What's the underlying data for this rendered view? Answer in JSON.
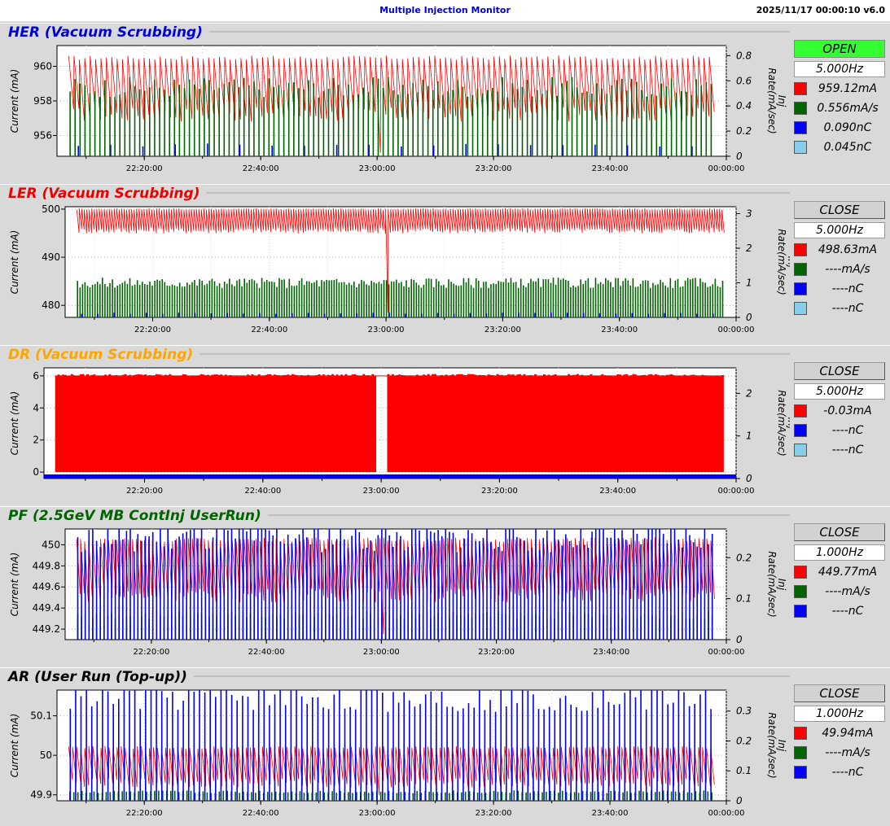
{
  "app": {
    "title": "Multiple Injection Monitor",
    "timestamp": "2025/11/17 00:00:10   v6.0"
  },
  "colors": {
    "her_title": "#0000dd",
    "ler_title": "#ee0000",
    "dr_title": "#ffa500",
    "pf_title": "#006400",
    "ar_title": "#000000",
    "current": "#ff0000",
    "inj_rate": "#006400",
    "charge": "#0000ff",
    "charge2": "#87ceeb",
    "open": "#33ff33"
  },
  "panels": [
    {
      "name": "HER",
      "title": "HER  (Vacuum Scrubbing)",
      "status": "OPEN",
      "frequency": "5.000Hz",
      "legend": [
        {
          "value": "959.12mA",
          "color": "#ff0000"
        },
        {
          "value": "0.556mA/s",
          "color": "#006400"
        },
        {
          "value": "0.090nC",
          "color": "#0000ff"
        },
        {
          "value": "0.045nC",
          "color": "#87ceeb"
        }
      ]
    },
    {
      "name": "LER",
      "title": "LER  (Vacuum Scrubbing)",
      "status": "CLOSE",
      "frequency": "5.000Hz",
      "legend": [
        {
          "value": "498.63mA",
          "color": "#ff0000"
        },
        {
          "value": "----mA/s",
          "color": "#006400"
        },
        {
          "value": "----nC",
          "color": "#0000ff"
        },
        {
          "value": "----nC",
          "color": "#87ceeb"
        }
      ]
    },
    {
      "name": "DR",
      "title": "DR  (Vacuum Scrubbing)",
      "status": "CLOSE",
      "frequency": "5.000Hz",
      "legend": [
        {
          "value": "-0.03mA",
          "color": "#ff0000"
        },
        {
          "value": "----nC",
          "color": "#0000ff"
        },
        {
          "value": "----nC",
          "color": "#87ceeb"
        }
      ]
    },
    {
      "name": "PF",
      "title": "PF  (2.5GeV MB ContInj UserRun)",
      "status": "CLOSE",
      "frequency": "1.000Hz",
      "legend": [
        {
          "value": "449.77mA",
          "color": "#ff0000"
        },
        {
          "value": "----mA/s",
          "color": "#006400"
        },
        {
          "value": "----nC",
          "color": "#0000ff"
        }
      ]
    },
    {
      "name": "AR",
      "title": "AR  (User Run (Top-up))",
      "status": "CLOSE",
      "frequency": "1.000Hz",
      "legend": [
        {
          "value": "49.94mA",
          "color": "#ff0000"
        },
        {
          "value": "----mA/s",
          "color": "#006400"
        },
        {
          "value": "----nC",
          "color": "#0000ff"
        }
      ]
    }
  ],
  "chart_data": [
    {
      "type": "line",
      "panel": "HER",
      "x_ticks": [
        "22:20:00",
        "22:40:00",
        "23:00:00",
        "23:20:00",
        "23:40:00",
        "00:00:00"
      ],
      "xlim": [
        "22:05:00",
        "00:00:00"
      ],
      "ylabel": "Current (mA)",
      "ylabel2": "Inj Rate(mA/sec) Charge(nC)",
      "ylim": [
        954.8,
        961.2
      ],
      "y_ticks": [
        956,
        958,
        960
      ],
      "y2lim": [
        0,
        0.88
      ],
      "y2_ticks": [
        0,
        0.2,
        0.4,
        0.6,
        0.8
      ],
      "series": [
        {
          "name": "959.12mA",
          "color": "#ff0000",
          "values": {
            "sawtooth_low": 957.2,
            "sawtooth_high": 960.5,
            "cycles": 120,
            "dip_at": "23:00:00",
            "dip_to": 955.0
          }
        },
        {
          "name": "0.556mA/s",
          "color": "#006400",
          "values": {
            "spike_height": 0.55,
            "spikes": 130
          }
        },
        {
          "name": "0.090nC",
          "color": "#0000ff",
          "values": {
            "spike_height": 0.09,
            "spikes": 20
          }
        }
      ]
    },
    {
      "type": "line",
      "panel": "LER",
      "x_ticks": [
        "22:20:00",
        "22:40:00",
        "23:00:00",
        "23:20:00",
        "23:40:00",
        "00:00:00"
      ],
      "xlim": [
        "22:05:00",
        "00:00:00"
      ],
      "ylabel": "Current (mA)",
      "ylabel2": "Inj Rate(mA/sec) Charge(nC)",
      "ylim": [
        477.5,
        500.5
      ],
      "y_ticks": [
        480,
        490,
        500
      ],
      "y2lim": [
        0,
        3.2
      ],
      "y2_ticks": [
        0,
        1,
        2,
        3
      ],
      "series": [
        {
          "name": "498.63mA",
          "color": "#ff0000",
          "values": {
            "sawtooth_low": 495.5,
            "sawtooth_high": 500.0,
            "cycles": 260,
            "dip_at": "23:00:00",
            "dip_to": 478.5
          }
        },
        {
          "name": "----mA/s",
          "color": "#006400",
          "values": {
            "spike_height": 1.0,
            "spikes": 260
          }
        },
        {
          "name": "----nC",
          "color": "#0000ff",
          "values": {
            "spike_height": 0.12,
            "spikes": 40
          }
        }
      ]
    },
    {
      "type": "line",
      "panel": "DR",
      "x_ticks": [
        "22:20:00",
        "22:40:00",
        "23:00:00",
        "23:20:00",
        "23:40:00",
        "00:00:00"
      ],
      "xlim": [
        "22:03:00",
        "00:00:00"
      ],
      "ylabel": "Current (mA)",
      "ylabel2": "Inj Rate(mA/sec) Charge(nC)",
      "ylim": [
        -0.4,
        6.5
      ],
      "y_ticks": [
        0,
        2,
        4,
        6
      ],
      "y2lim": [
        0,
        2.6
      ],
      "y2_ticks": [
        0,
        1,
        2
      ],
      "series": [
        {
          "name": "-0.03mA",
          "color": "#ff0000",
          "values": {
            "pulse_high": 6.0,
            "pulse_low": 0,
            "pulses": 300,
            "gap_at": "23:00:00"
          }
        },
        {
          "name": "----nC",
          "color": "#0000ff",
          "values": {
            "baseline": 0.0
          }
        }
      ]
    },
    {
      "type": "line",
      "panel": "PF",
      "x_ticks": [
        "22:20:00",
        "22:40:00",
        "23:00:00",
        "23:20:00",
        "23:40:00",
        "00:00:00"
      ],
      "xlim": [
        "22:05:00",
        "00:00:00"
      ],
      "ylabel": "Current (mA)",
      "ylabel2": "Inj Rate(mA/sec) Charge(nC)",
      "ylim": [
        449.1,
        450.15
      ],
      "y_ticks": [
        449.2,
        449.4,
        449.6,
        449.8,
        450
      ],
      "y2lim": [
        0,
        0.27
      ],
      "y2_ticks": [
        0,
        0.1,
        0.2
      ],
      "series": [
        {
          "name": "449.77mA",
          "color": "#ff0000",
          "values": {
            "sawtooth_low": 449.52,
            "sawtooth_high": 450.05,
            "cycles": 160,
            "dip_at": "23:00:00",
            "dip_to": 449.15
          }
        },
        {
          "name": "----mA/s",
          "color": "#006400",
          "values": {
            "spike_height": 0.06,
            "spikes": 170
          }
        },
        {
          "name": "----nC",
          "color": "#0000ff",
          "values": {
            "spike_height": 0.25,
            "spikes": 170
          }
        }
      ]
    },
    {
      "type": "line",
      "panel": "AR",
      "x_ticks": [
        "22:20:00",
        "22:40:00",
        "23:00:00",
        "23:20:00",
        "23:40:00",
        "00:00:00"
      ],
      "xlim": [
        "22:05:00",
        "00:00:00"
      ],
      "ylabel": "Current (mA)",
      "ylabel2": "Inj Rate(mA/sec) Charge(nC)",
      "ylim": [
        49.885,
        50.165
      ],
      "y_ticks": [
        49.9,
        50,
        50.1
      ],
      "y2lim": [
        0,
        0.37
      ],
      "y2_ticks": [
        0,
        0.1,
        0.2,
        0.3
      ],
      "series": [
        {
          "name": "49.94mA",
          "color": "#ff0000",
          "values": {
            "sawtooth_low": 49.93,
            "sawtooth_high": 50.02,
            "cycles": 160,
            "dip_at": "23:00:00",
            "dip_to": 49.9
          }
        },
        {
          "name": "----mA/s",
          "color": "#006400",
          "values": {
            "spike_height": 0.03,
            "spikes": 160
          }
        },
        {
          "name": "----nC",
          "color": "#0000ff",
          "values": {
            "spike_height": 0.35,
            "spikes": 120
          }
        }
      ]
    }
  ]
}
